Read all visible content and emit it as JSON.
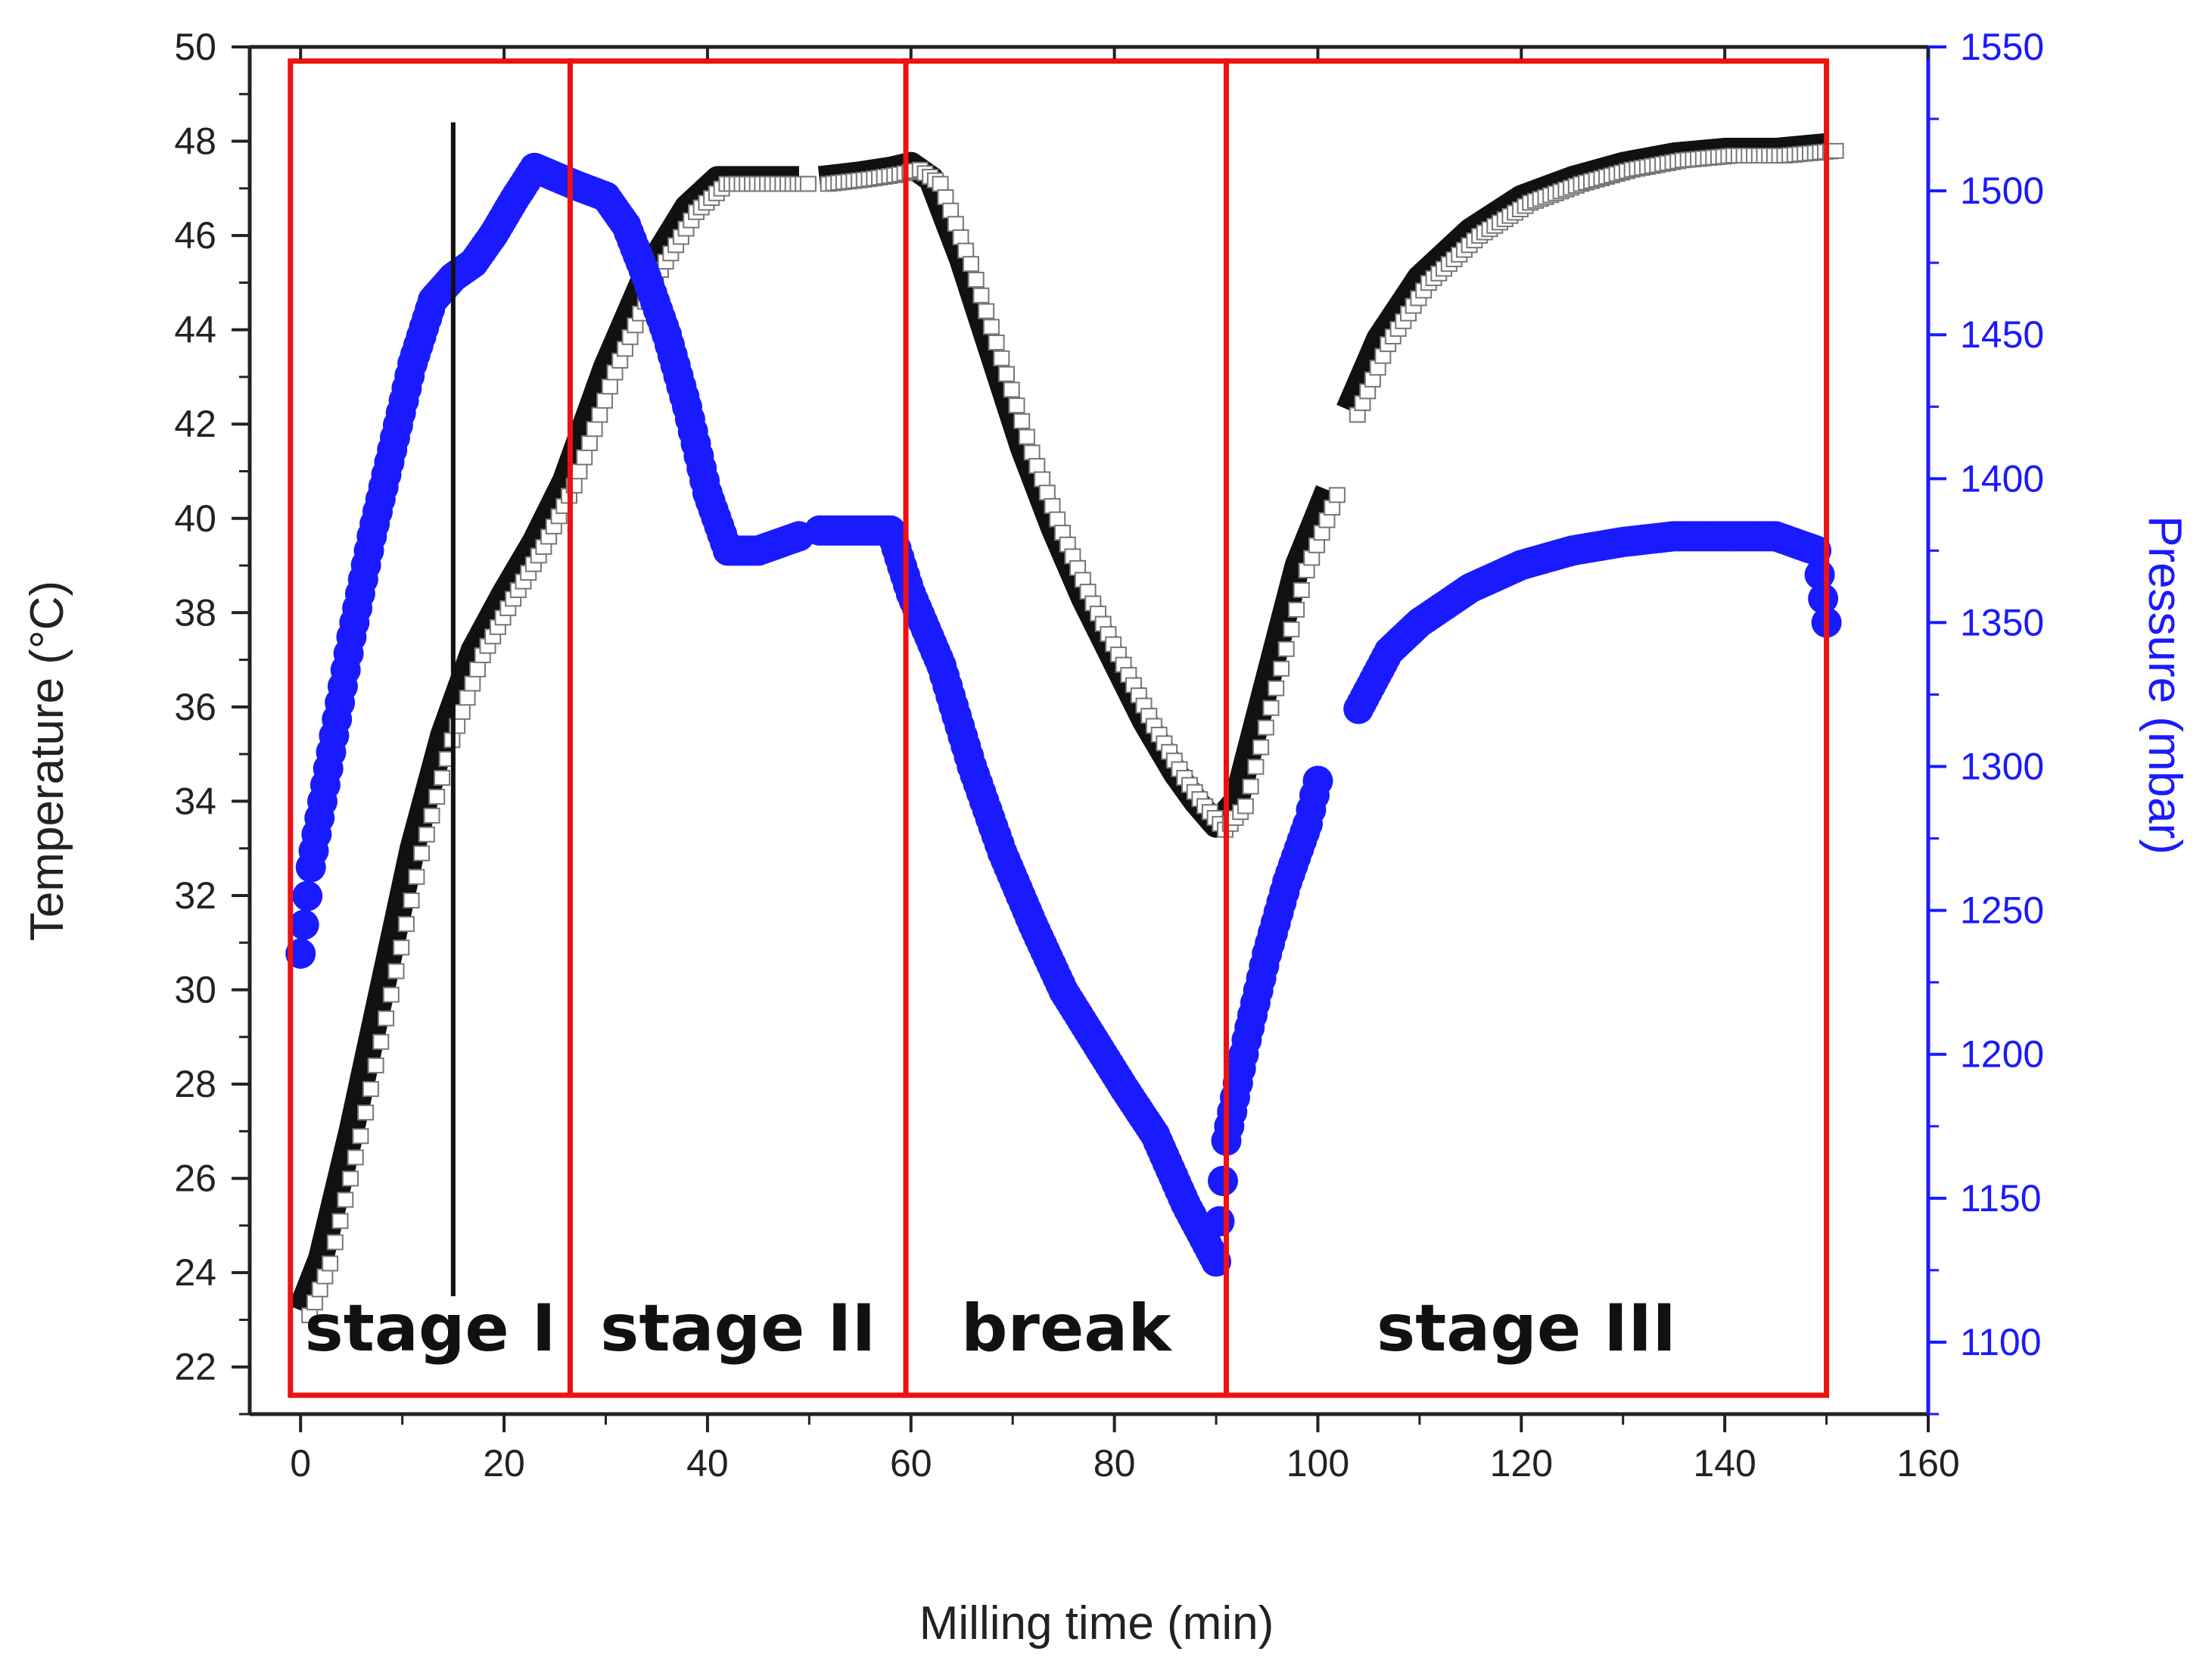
{
  "chart_data": {
    "type": "scatter",
    "title": "",
    "xlabel": "Milling time (min)",
    "ylabel_left": "Temperature (°C)",
    "ylabel_right": "Pressure (mbar)",
    "xlim": [
      -5,
      160
    ],
    "ylim_left": [
      21,
      50
    ],
    "ylim_right": [
      1075,
      1550
    ],
    "x_ticks": [
      "0",
      "20",
      "40",
      "60",
      "80",
      "100",
      "120",
      "140",
      "160"
    ],
    "y_left_ticks": [
      "22",
      "24",
      "26",
      "28",
      "30",
      "32",
      "34",
      "36",
      "38",
      "40",
      "42",
      "44",
      "46",
      "48",
      "50"
    ],
    "y_right_ticks": [
      "1100",
      "1150",
      "1200",
      "1250",
      "1300",
      "1350",
      "1400",
      "1450",
      "1500",
      "1550"
    ],
    "colors": {
      "temperature": "#111111",
      "pressure": "#1a1aff",
      "stage_box": "#ee1111",
      "marker_line": "#111111",
      "axis_left": "#222222",
      "axis_right": "#1a1aff"
    },
    "marker_line_x": 15,
    "marker_line_range": [
      23.5,
      48.4
    ],
    "series": [
      {
        "name": "Temperature",
        "axis": "left",
        "segments": [
          [
            [
              0,
              23.2
            ],
            [
              2,
              24.3
            ],
            [
              5,
              27
            ],
            [
              8,
              30
            ],
            [
              11,
              33
            ],
            [
              14,
              35.4
            ],
            [
              17,
              37.2
            ],
            [
              20,
              38.4
            ],
            [
              23,
              39.5
            ],
            [
              26,
              40.8
            ],
            [
              30,
              43.2
            ],
            [
              34,
              45.2
            ],
            [
              38,
              46.6
            ],
            [
              41,
              47.2
            ],
            [
              45,
              47.2
            ],
            [
              49,
              47.2
            ]
          ],
          [
            [
              51,
              47.2
            ],
            [
              55,
              47.3
            ],
            [
              58,
              47.4
            ],
            [
              60,
              47.5
            ],
            [
              62,
              47.2
            ],
            [
              65,
              45.5
            ],
            [
              68,
              43.5
            ],
            [
              71,
              41.5
            ],
            [
              74,
              39.8
            ],
            [
              77,
              38.3
            ],
            [
              80,
              37
            ],
            [
              83,
              35.7
            ],
            [
              86,
              34.6
            ],
            [
              88,
              34
            ],
            [
              90,
              33.5
            ],
            [
              92,
              34
            ],
            [
              95,
              36.5
            ],
            [
              98,
              39
            ],
            [
              101,
              40.6
            ]
          ],
          [
            [
              103,
              42.3
            ],
            [
              106,
              43.8
            ],
            [
              110,
              45.1
            ],
            [
              115,
              46.1
            ],
            [
              120,
              46.8
            ],
            [
              125,
              47.2
            ],
            [
              130,
              47.5
            ],
            [
              135,
              47.7
            ],
            [
              140,
              47.8
            ],
            [
              145,
              47.8
            ],
            [
              150,
              47.9
            ]
          ]
        ]
      },
      {
        "name": "Pressure",
        "axis": "right",
        "segments": [
          [
            [
              0,
              1235
            ],
            [
              1,
              1265
            ],
            [
              3,
              1305
            ],
            [
              5,
              1345
            ],
            [
              7,
              1380
            ],
            [
              9,
              1410
            ],
            [
              11,
              1440
            ],
            [
              13,
              1462
            ],
            [
              15,
              1470
            ],
            [
              17,
              1475
            ],
            [
              19,
              1485
            ],
            [
              21,
              1497
            ],
            [
              23,
              1508
            ],
            [
              25,
              1505
            ],
            [
              27,
              1502
            ],
            [
              30,
              1498
            ],
            [
              32,
              1488
            ],
            [
              34,
              1470
            ],
            [
              36,
              1450
            ],
            [
              38,
              1425
            ],
            [
              40,
              1395
            ],
            [
              42,
              1375
            ],
            [
              45,
              1375
            ],
            [
              49,
              1380
            ]
          ],
          [
            [
              51,
              1382
            ],
            [
              55,
              1382
            ],
            [
              58,
              1382
            ],
            [
              60,
              1360
            ],
            [
              63,
              1335
            ],
            [
              66,
              1300
            ],
            [
              69,
              1270
            ],
            [
              72,
              1245
            ],
            [
              75,
              1222
            ],
            [
              78,
              1205
            ],
            [
              81,
              1188
            ],
            [
              84,
              1172
            ],
            [
              87,
              1148
            ],
            [
              90,
              1128
            ],
            [
              91,
              1170
            ],
            [
              93,
              1205
            ],
            [
              95,
              1235
            ],
            [
              97,
              1260
            ],
            [
              99,
              1280
            ],
            [
              100,
              1295
            ]
          ],
          [
            [
              104,
              1320
            ],
            [
              107,
              1340
            ],
            [
              110,
              1350
            ],
            [
              115,
              1362
            ],
            [
              120,
              1370
            ],
            [
              125,
              1375
            ],
            [
              130,
              1378
            ],
            [
              135,
              1380
            ],
            [
              140,
              1380
            ],
            [
              145,
              1380
            ],
            [
              149,
              1375
            ],
            [
              150,
              1350
            ]
          ]
        ]
      }
    ],
    "stages": [
      {
        "label": "stage I",
        "x_start": -1,
        "x_end": 26.5
      },
      {
        "label": "stage II",
        "x_start": 26.5,
        "x_end": 59.5
      },
      {
        "label": "break",
        "x_start": 59.5,
        "x_end": 91
      },
      {
        "label": "stage III",
        "x_start": 91,
        "x_end": 150
      }
    ],
    "stage_box_ylim": [
      21.4,
      49.7
    ]
  }
}
